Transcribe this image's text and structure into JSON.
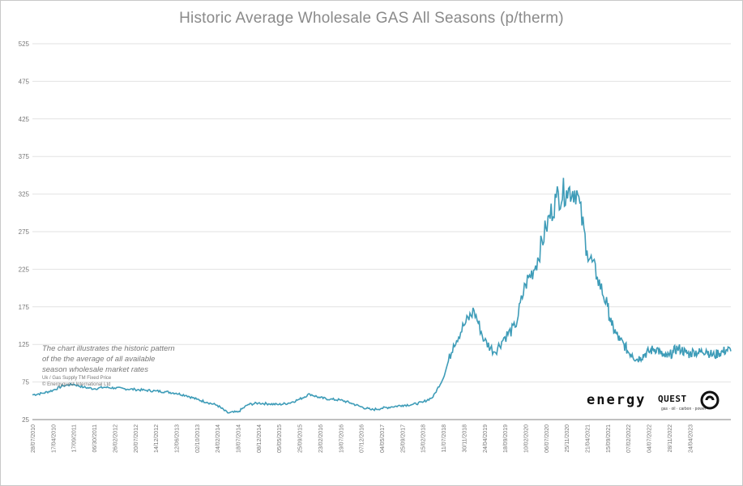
{
  "chart_data": {
    "type": "line",
    "title": "Historic Average Wholesale GAS All Seasons (p/therm)",
    "xlabel": "",
    "ylabel": "",
    "ylim": [
      25,
      525
    ],
    "yticks": [
      "25",
      "75",
      "125",
      "175",
      "225",
      "275",
      "325",
      "375",
      "425",
      "475",
      "525"
    ],
    "xticks": [
      "28/07/2010",
      "17/04/2010",
      "17/09/2011",
      "06/30/2011",
      "26/02/2012",
      "20/07/2012",
      "14/12/2012",
      "12/06/2013",
      "02/10/2013",
      "24/02/2014",
      "18/07/2014",
      "08/12/2014",
      "05/05/2015",
      "25/09/2015",
      "23/02/2016",
      "19/07/2016",
      "07/12/2016",
      "04/05/2017",
      "25/09/2017",
      "15/02/2018",
      "11/07/2018",
      "30/11/2018",
      "24/04/2019",
      "18/09/2019",
      "10/02/2020",
      "06/07/2020",
      "25/11/2020",
      "21/04/2021",
      "15/09/2021",
      "07/02/2022",
      "04/07/2022",
      "28/11/2022",
      "24/04/2023"
    ],
    "grid": true,
    "legend": "none",
    "color": "#3e9cb8",
    "series": [
      {
        "x": [
          0,
          0.5,
          1,
          1.5,
          2,
          2.5,
          3,
          3.5,
          4,
          4.5,
          5,
          5.5,
          6,
          6.5,
          7,
          7.5,
          8,
          8.5,
          9,
          9.5,
          10,
          10.5,
          11,
          11.5,
          12,
          12.5,
          13,
          13.5,
          14,
          14.5,
          15,
          15.5,
          16,
          16.5,
          17,
          17.5,
          18,
          18.5,
          19,
          19.5,
          20,
          20.5,
          21,
          21.5,
          22,
          22.5,
          23,
          23.5,
          24,
          24.5,
          25,
          25.5,
          26,
          26.5,
          27,
          27.5,
          28,
          28.2,
          28.4,
          28.6,
          28.8,
          29,
          29.2,
          29.4,
          29.6,
          29.8,
          30,
          30.2,
          30.4,
          30.6,
          30.8,
          31,
          31.2,
          31.4,
          31.6,
          31.8,
          32,
          32.2,
          32.4,
          32.6,
          32.8,
          33,
          33.2,
          33.4,
          33.6,
          33.8,
          34
        ],
        "values": [
          58,
          60,
          64,
          70,
          72,
          68,
          66,
          68,
          67,
          66,
          65,
          64,
          63,
          62,
          60,
          57,
          52,
          48,
          44,
          34,
          35,
          45,
          47,
          46,
          45,
          47,
          52,
          59,
          54,
          52,
          51,
          47,
          42,
          38,
          40,
          42,
          44,
          45,
          48,
          55,
          80,
          125,
          150,
          170,
          130,
          115,
          135,
          148,
          205,
          230,
          280,
          320,
          330,
          330,
          250,
          215,
          175,
          150,
          140,
          130,
          125,
          115,
          112,
          105,
          108,
          112,
          115,
          118,
          120,
          112,
          108,
          110,
          115,
          120,
          118,
          114,
          112,
          116,
          114,
          115,
          118,
          112,
          110,
          114,
          115,
          118,
          116
        ]
      }
    ]
  },
  "annotation": {
    "line1": "The chart illustrates the historic pattern",
    "line2": "of the the average of all available",
    "line3": "season wholesale market rates",
    "line4": "Uk / Gas Supply TM Fixed Price",
    "line5": "© Energyquest International Ltd"
  },
  "logo": {
    "word1": "energy",
    "word2": "QUEST",
    "tagline": "gas · oil · carbon · power"
  }
}
